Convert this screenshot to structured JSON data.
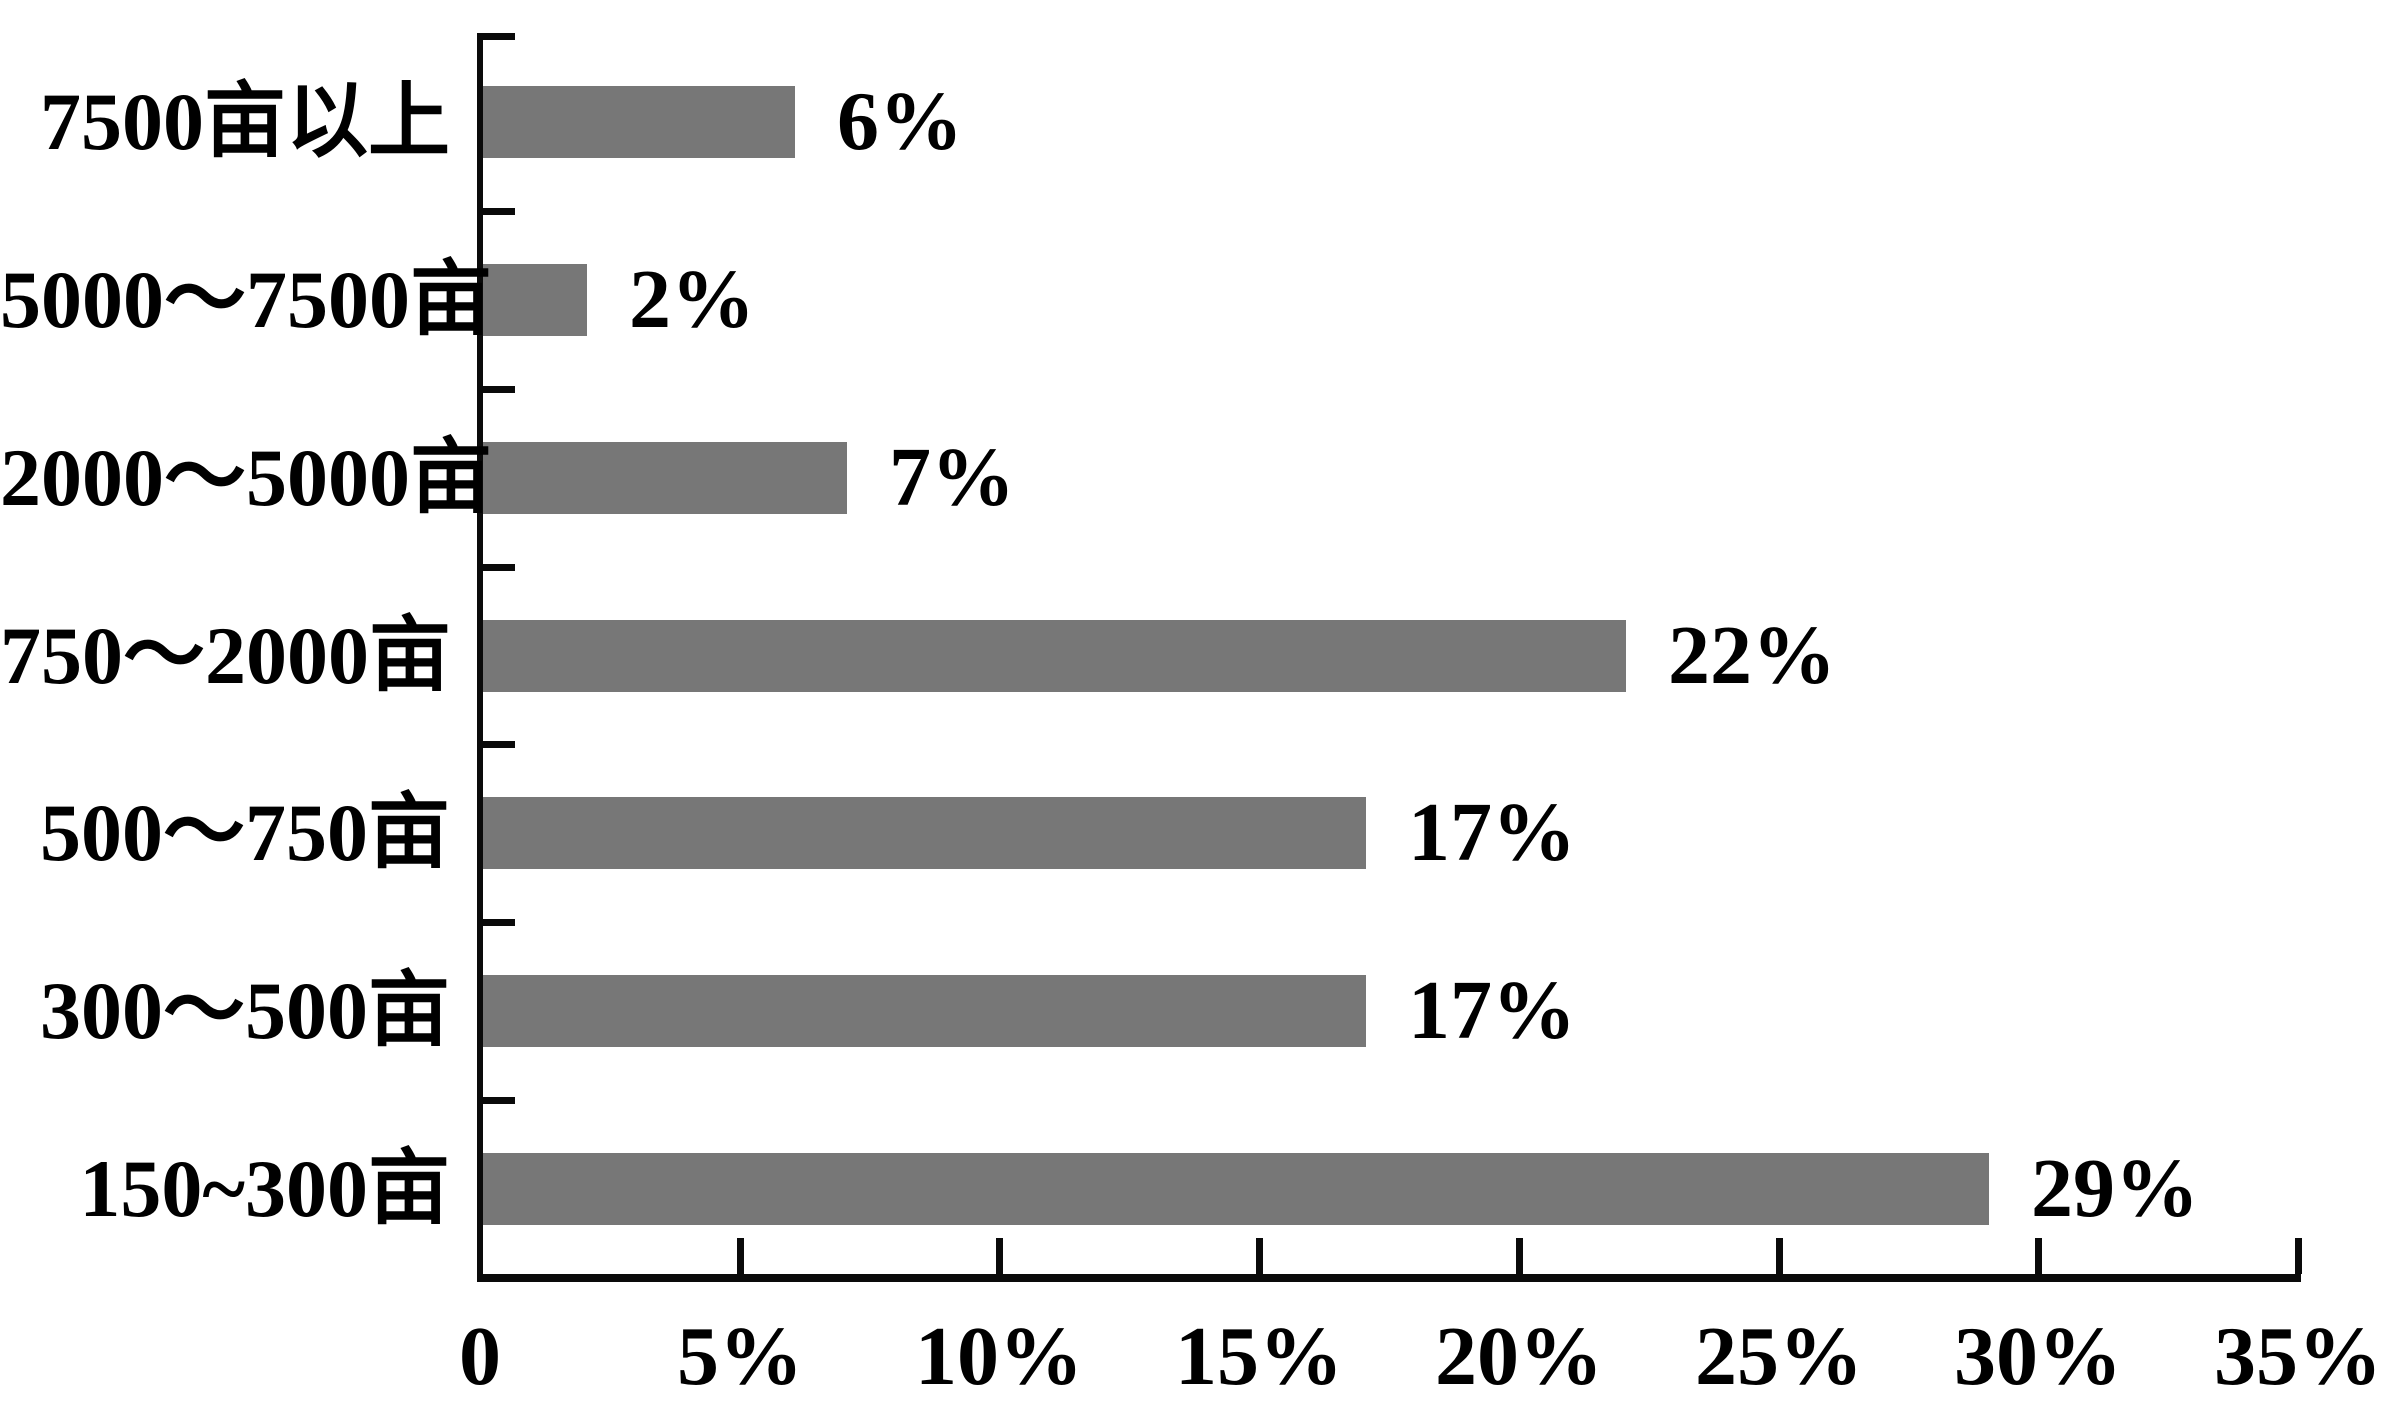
{
  "chart_data": {
    "type": "bar",
    "orientation": "horizontal",
    "title": "",
    "xlabel": "",
    "ylabel": "",
    "grid": false,
    "legend_position": "none",
    "categories": [
      "7500亩以上",
      "5000～7500亩",
      "2000～5000亩",
      "750～2000亩",
      "500～750亩",
      "300～500亩",
      "150~300亩"
    ],
    "values": [
      6,
      2,
      7,
      22,
      17,
      17,
      29
    ],
    "value_labels": [
      "6%",
      "2%",
      "7%",
      "22%",
      "17%",
      "17%",
      "29%"
    ],
    "x_tick_labels": [
      "0",
      "5%",
      "10%",
      "15%",
      "20%",
      "25%",
      "30%",
      "35%"
    ],
    "xlim": [
      0,
      35
    ],
    "x_tick_step": 5,
    "bar_color": "#777777",
    "axis_color": "#0a0a0a",
    "text_color": "#000000",
    "background_color": "#ffffff"
  }
}
